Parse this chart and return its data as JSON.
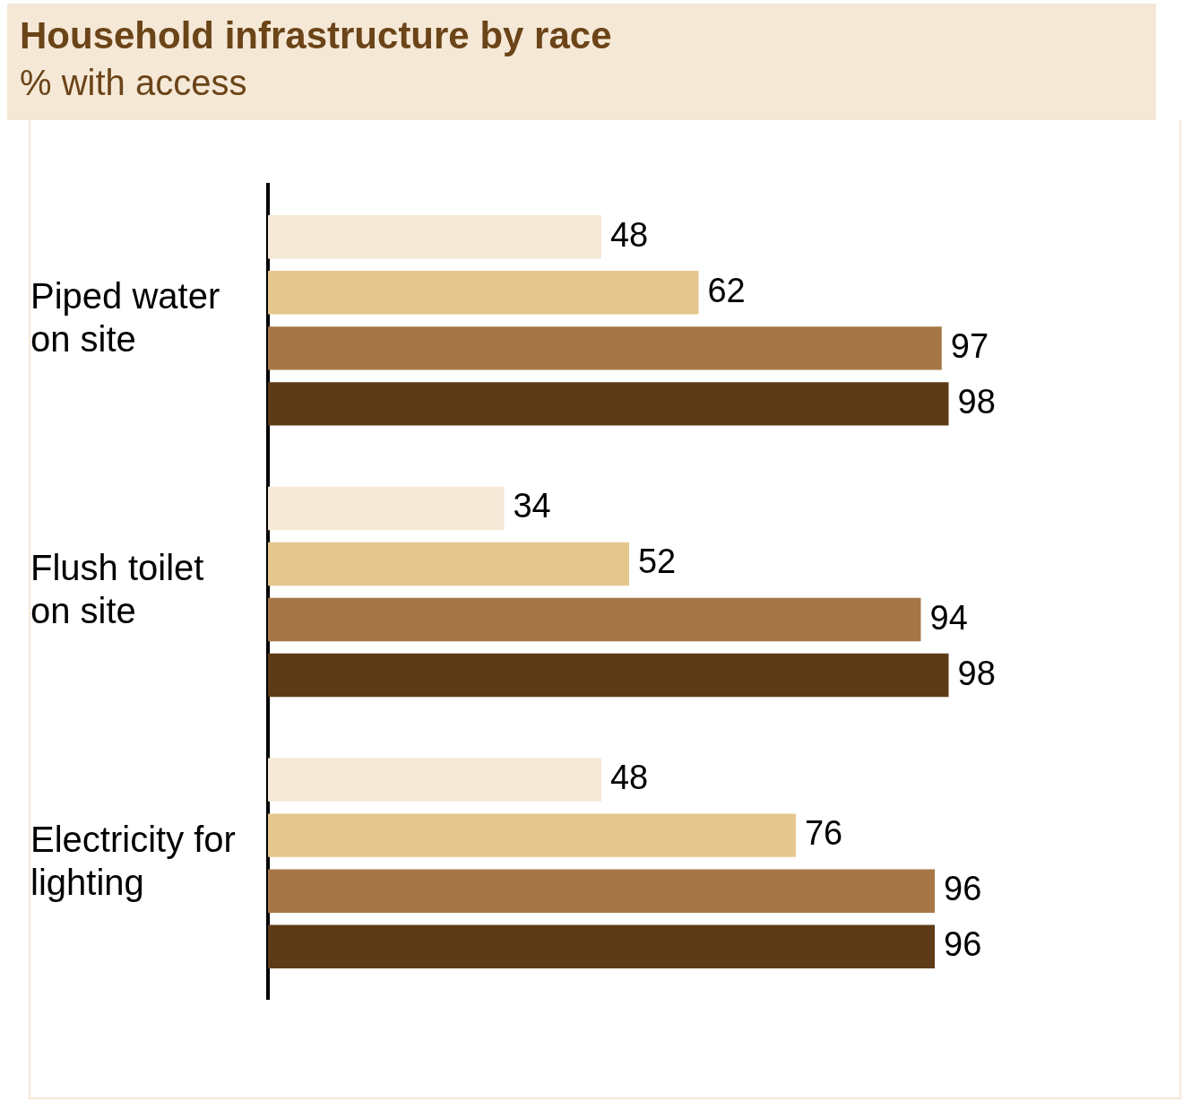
{
  "chart_data": {
    "type": "bar",
    "orientation": "horizontal",
    "title": "Household infrastructure by race",
    "subtitle": "% with access",
    "categories": [
      "Piped water on site",
      "Flush toilet on site",
      "Electricity for lighting"
    ],
    "series": [
      {
        "color": "#f5e8d6",
        "values": [
          48,
          34,
          48
        ]
      },
      {
        "color": "#e5c78e",
        "values": [
          62,
          52,
          76
        ]
      },
      {
        "color": "#a67746",
        "values": [
          97,
          94,
          96
        ]
      },
      {
        "color": "#5e3b17",
        "values": [
          98,
          98,
          96
        ]
      }
    ],
    "data_labels": true,
    "tick_labels": "y",
    "legend": false
  }
}
